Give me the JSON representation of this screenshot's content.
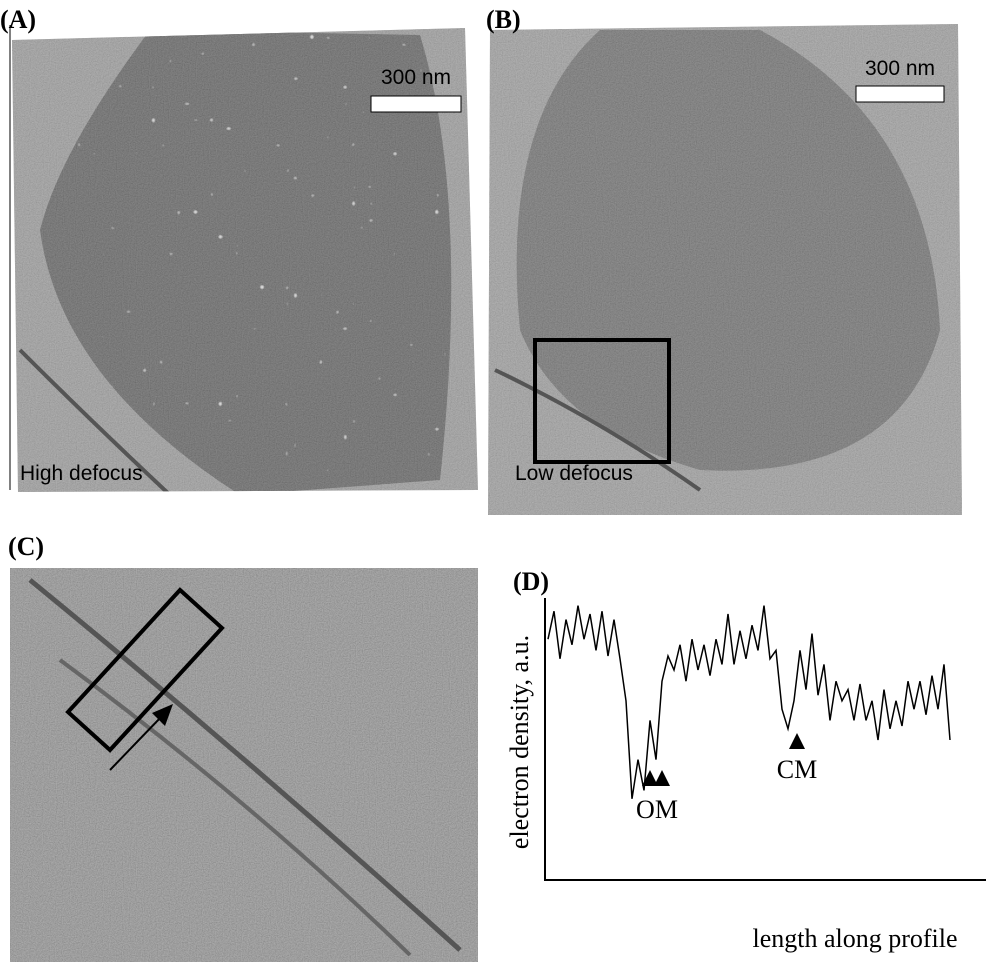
{
  "panels": {
    "A": {
      "label": "(A)",
      "scale_bar": "300 nm",
      "caption": "High defocus"
    },
    "B": {
      "label": "(B)",
      "scale_bar": "300 nm",
      "caption": "Low defocus"
    },
    "C": {
      "label": "(C)"
    },
    "D": {
      "label": "(D)",
      "y_axis_label": "electron density, a.u.",
      "x_axis_label": "length along profile",
      "markers": [
        "OM",
        "CM"
      ],
      "profile": {
        "ylim": [
          0,
          100
        ],
        "values": [
          86,
          96,
          79,
          93,
          84,
          98,
          86,
          95,
          82,
          96,
          80,
          93,
          79,
          64,
          29,
          43,
          32,
          57,
          43,
          71,
          80,
          75,
          84,
          71,
          86,
          75,
          84,
          73,
          86,
          77,
          95,
          77,
          89,
          79,
          91,
          82,
          98,
          79,
          82,
          61,
          54,
          64,
          82,
          68,
          88,
          66,
          77,
          57,
          71,
          64,
          68,
          57,
          70,
          57,
          64,
          50,
          68,
          54,
          64,
          55,
          71,
          61,
          71,
          59,
          73,
          61,
          77,
          50
        ]
      }
    }
  }
}
